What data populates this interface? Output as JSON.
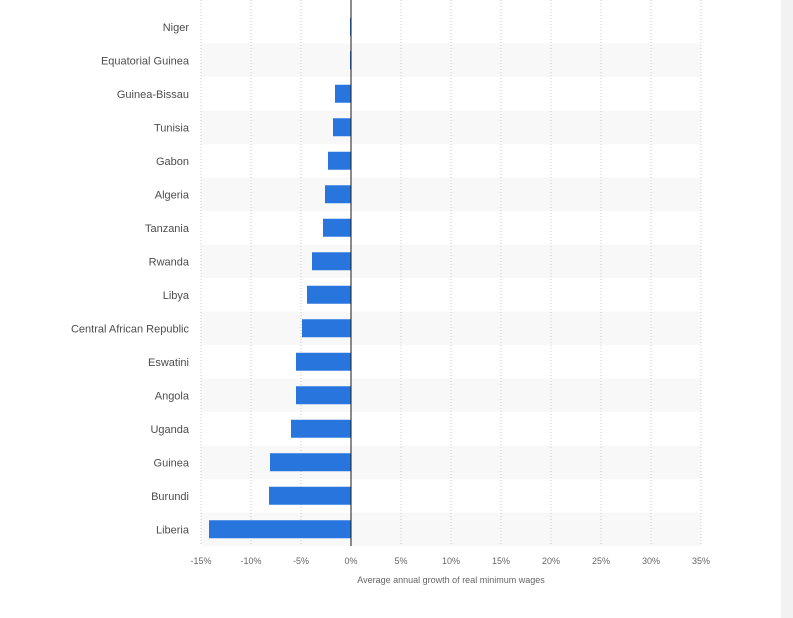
{
  "chart_data": {
    "type": "bar",
    "orientation": "horizontal",
    "title": "",
    "xlabel": "Average annual growth of real minimum wages",
    "ylabel": "",
    "xlim": [
      -15,
      35
    ],
    "ticks": [
      -15,
      -10,
      -5,
      0,
      5,
      10,
      15,
      20,
      25,
      30,
      35
    ],
    "tick_labels": [
      "-15%",
      "-10%",
      "-5%",
      "0%",
      "5%",
      "10%",
      "15%",
      "20%",
      "25%",
      "30%",
      "35%"
    ],
    "grid": true,
    "legend": "none",
    "colors": {
      "bar": "#2876dd",
      "zero_line": "#1a1a1a",
      "grid": "#cccccc",
      "stripe": "#f8f8f8"
    },
    "categories": [
      "Niger",
      "Equatorial Guinea",
      "Guinea-Bissau",
      "Tunisia",
      "Gabon",
      "Algeria",
      "Tanzania",
      "Rwanda",
      "Libya",
      "Central African Republic",
      "Eswatini",
      "Angola",
      "Uganda",
      "Guinea",
      "Burundi",
      "Liberia"
    ],
    "values": [
      -0.1,
      -0.1,
      -1.6,
      -1.8,
      -2.3,
      -2.6,
      -2.8,
      -3.9,
      -4.4,
      -4.9,
      -5.5,
      -5.5,
      -6.0,
      -8.1,
      -8.2,
      -14.2
    ]
  }
}
